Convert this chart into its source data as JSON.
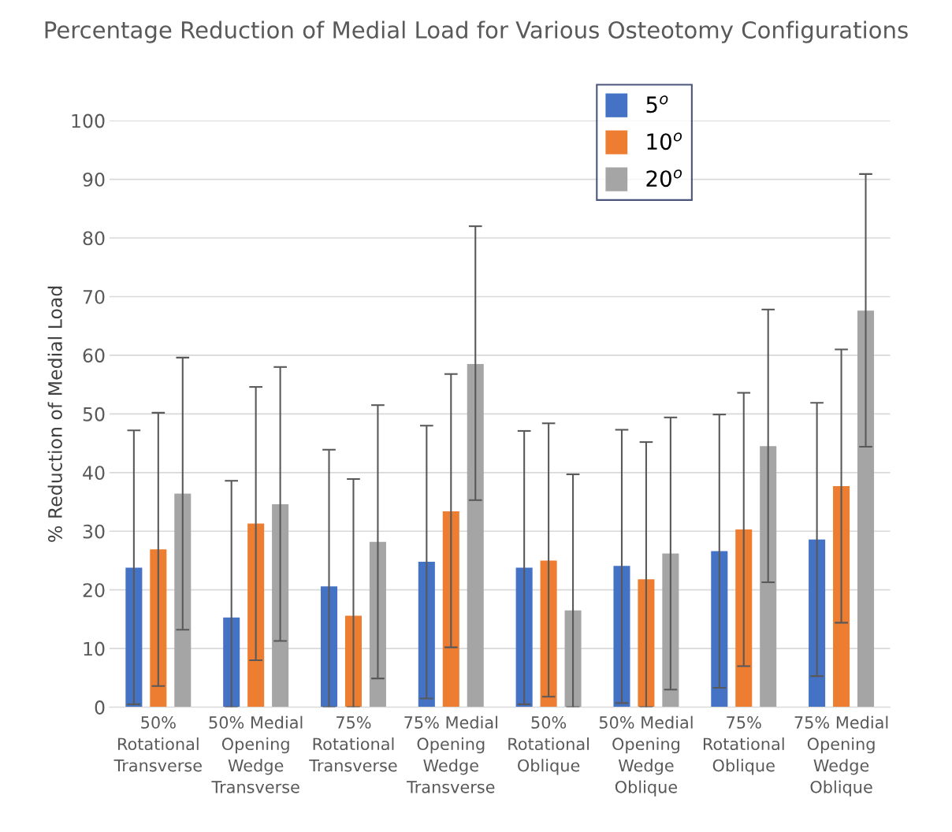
{
  "chart_data": {
    "type": "bar",
    "title": "Percentage Reduction of Medial Load for Various Osteotomy Configurations",
    "ylabel": "% Reduction of Medial Load",
    "categories": [
      "50%\nRotational\nTransverse",
      "50% Medial\nOpening\nWedge\nTransverse",
      "75%\nRotational\nTransverse",
      "75% Medial\nOpening\nWedge\nTransverse",
      "50%\nRotational\nOblique",
      "50% Medial\nOpening\nWedge\nOblique",
      "75%\nRotational\nOblique",
      "75% Medial\nOpening\nWedge\nOblique"
    ],
    "series": [
      {
        "name": "5$^{o}$",
        "color": "#4472c4",
        "values": [
          23.8,
          15.3,
          20.6,
          24.8,
          23.8,
          24.1,
          26.6,
          28.6
        ],
        "errors": [
          [
            0.5,
            47.2
          ],
          [
            0,
            38.6
          ],
          [
            0,
            43.9
          ],
          [
            1.5,
            48.0
          ],
          [
            0.5,
            47.1
          ],
          [
            0.7,
            47.3
          ],
          [
            3.3,
            49.9
          ],
          [
            5.3,
            51.9
          ]
        ]
      },
      {
        "name": "10$^{o}$",
        "color": "#ed7d31",
        "values": [
          26.9,
          31.3,
          15.6,
          33.4,
          25.0,
          21.8,
          30.3,
          37.7
        ],
        "errors": [
          [
            3.6,
            50.2
          ],
          [
            8.0,
            54.6
          ],
          [
            0,
            38.9
          ],
          [
            10.2,
            56.8
          ],
          [
            1.8,
            48.4
          ],
          [
            0,
            45.2
          ],
          [
            7.0,
            53.6
          ],
          [
            14.4,
            61.0
          ]
        ]
      },
      {
        "name": "20$^{o}$",
        "color": "#a5a5a5",
        "values": [
          36.4,
          34.6,
          28.2,
          58.5,
          16.5,
          26.2,
          44.5,
          67.6
        ],
        "errors": [
          [
            13.2,
            59.6
          ],
          [
            11.3,
            58.0
          ],
          [
            4.9,
            51.5
          ],
          [
            35.3,
            82.0
          ],
          [
            0,
            39.7
          ],
          [
            3.0,
            49.4
          ],
          [
            21.3,
            67.8
          ],
          [
            44.4,
            90.9
          ]
        ]
      }
    ],
    "ylim": [
      0,
      100
    ],
    "yticks": [
      0,
      10,
      20,
      30,
      40,
      50,
      60,
      70,
      80,
      90,
      100
    ],
    "grid": "y",
    "legend": "top right"
  }
}
